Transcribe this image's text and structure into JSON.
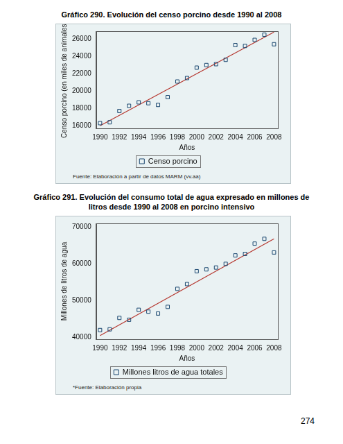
{
  "page_number": "274",
  "chart_data": [
    {
      "type": "scatter",
      "title": "Gráfico 290. Evolución del censo porcino desde 1990 al 2008",
      "x_label": "Años",
      "y_label": "Censo porcino (en miles de animales)",
      "annotations": [
        "Fuente: Elaboración a partir de datos MARM (vv.aa)"
      ],
      "x": [
        1990,
        1991,
        1992,
        1993,
        1994,
        1995,
        1996,
        1997,
        1998,
        1999,
        2000,
        2001,
        2002,
        2003,
        2004,
        2005,
        2006,
        2007,
        2008
      ],
      "series": [
        {
          "name": "Censo porcino",
          "type": "scatter",
          "marker": "square",
          "color": "#1a476f",
          "values": [
            16300,
            16400,
            17700,
            18300,
            18700,
            18600,
            18400,
            19300,
            21100,
            21500,
            22700,
            23000,
            23100,
            23600,
            25300,
            25200,
            25900,
            26500,
            25400
          ]
        },
        {
          "type": "line",
          "line_style": "solid",
          "color": "#b5362e",
          "x": [
            1990,
            2008
          ],
          "values": [
            16000,
            26800
          ]
        }
      ],
      "xlim": [
        1989.6,
        2008.4
      ],
      "xticks": [
        1990,
        1992,
        1994,
        1996,
        1998,
        2000,
        2002,
        2004,
        2006,
        2008
      ],
      "ylim": [
        15700,
        26900
      ],
      "yticks": [
        16000,
        18000,
        20000,
        22000,
        24000,
        26000
      ],
      "grid": false,
      "legend": "bottom"
    },
    {
      "type": "scatter",
      "title": "Gráfico 291. Evolución del consumo total de agua expresado en millones de litros desde 1990 al 2008 en porcino intensivo",
      "x_label": "Años",
      "y_label": "Millones de litros de agua",
      "annotations": [
        "*Fuente: Elaboración propia"
      ],
      "x": [
        1990,
        1991,
        1992,
        1993,
        1994,
        1995,
        1996,
        1997,
        1998,
        1999,
        2000,
        2001,
        2002,
        2003,
        2004,
        2005,
        2006,
        2007,
        2008
      ],
      "series": [
        {
          "name": "Millones litros de agua totales",
          "type": "scatter",
          "marker": "square",
          "color": "#1a476f",
          "values": [
            42000,
            42200,
            45300,
            44800,
            47500,
            47000,
            46500,
            48300,
            53200,
            54500,
            58000,
            58500,
            59000,
            60000,
            62300,
            62700,
            65500,
            66800,
            63100
          ]
        },
        {
          "type": "line",
          "line_style": "solid",
          "color": "#b5362e",
          "x": [
            1990,
            2008
          ],
          "values": [
            40500,
            66800
          ]
        }
      ],
      "xlim": [
        1989.6,
        2008.4
      ],
      "xticks": [
        1990,
        1992,
        1994,
        1996,
        1998,
        2000,
        2002,
        2004,
        2006,
        2008
      ],
      "ylim": [
        39500,
        71000
      ],
      "yticks": [
        40000,
        50000,
        60000,
        70000
      ],
      "grid": false,
      "legend": "bottom"
    }
  ]
}
